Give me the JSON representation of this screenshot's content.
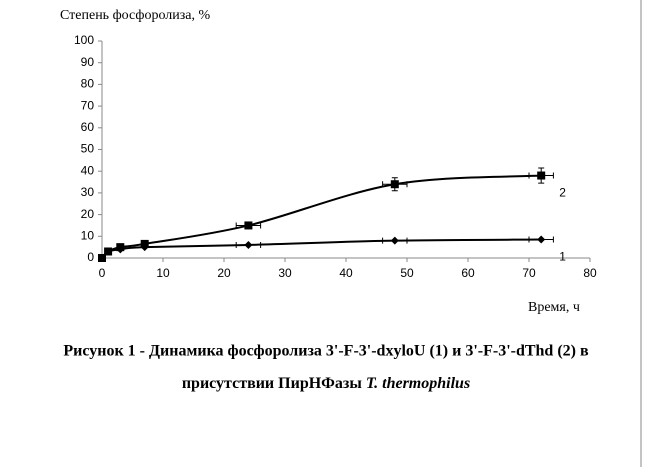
{
  "chart_data": {
    "type": "line",
    "y_axis_title": "Степень фосфоролиза, %",
    "x_axis_title": "Время, ч",
    "caption_line1": "Рисунок 1 - Динамика  фосфоролиза  3'-F-3'-dxyloU (1) и 3'-F-3'-dThd (2) в",
    "caption_line2": [
      "присутствии ПирНФазы ",
      "T. thermophilus"
    ],
    "x": [
      0,
      1,
      3,
      7,
      24,
      48,
      72
    ],
    "series": [
      {
        "name": "1",
        "color": "#000000",
        "marker": "diamond",
        "values": [
          0,
          3,
          4,
          5,
          6,
          8,
          8.5
        ],
        "xerr": [
          0,
          0,
          0,
          0,
          2,
          2,
          2
        ]
      },
      {
        "name": "2",
        "color": "#000000",
        "marker": "square",
        "values": [
          0,
          3,
          5,
          6.5,
          15,
          34,
          38
        ],
        "yerr": [
          0,
          0,
          0,
          0,
          1,
          3,
          3.5
        ],
        "xerr": [
          0,
          0,
          0,
          0,
          2,
          2,
          2
        ]
      }
    ],
    "xlim": [
      0,
      80
    ],
    "xticks": [
      0,
      10,
      20,
      30,
      40,
      50,
      60,
      70,
      80
    ],
    "ylim": [
      0,
      100
    ],
    "yticks": [
      0,
      10,
      20,
      30,
      40,
      50,
      60,
      70,
      80,
      90,
      100
    ],
    "grid": false
  }
}
